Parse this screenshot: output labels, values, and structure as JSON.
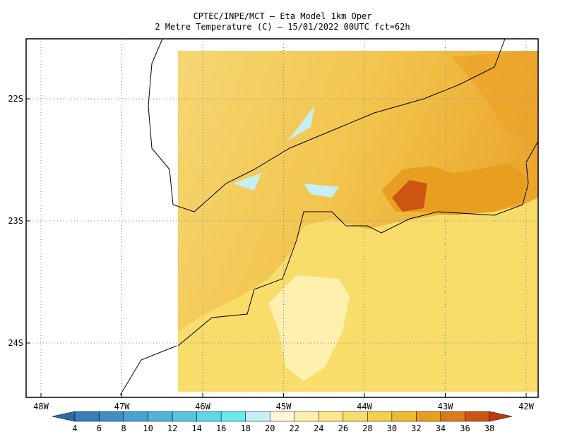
{
  "header": {
    "line1": "CPTEC/INPE/MCT –  Eta Model 1km Oper",
    "line2": "2 Metre Temperature (C) – 15/01/2022 00UTC fct=62h"
  },
  "map": {
    "lat_labels": [
      "22S",
      "23S",
      "24S"
    ],
    "lon_labels": [
      "48W",
      "47W",
      "46W",
      "45W",
      "44W",
      "43W",
      "42W"
    ]
  },
  "colorbar": {
    "labels": [
      4,
      6,
      8,
      10,
      12,
      14,
      16,
      18,
      20,
      22,
      24,
      26,
      28,
      30,
      32,
      34,
      36,
      38
    ],
    "colors": [
      "#2a6aa8",
      "#3a7dbb",
      "#3f8fc6",
      "#46a2cf",
      "#4fb4d8",
      "#55c6e0",
      "#5dd8e8",
      "#6de8ef",
      "#c6f0f5",
      "#fff5d8",
      "#fff0b0",
      "#fce78c",
      "#f8dd6b",
      "#f3cf4e",
      "#eeba30",
      "#e89f20",
      "#dc7a18",
      "#cc5512",
      "#b83c0c"
    ]
  }
}
